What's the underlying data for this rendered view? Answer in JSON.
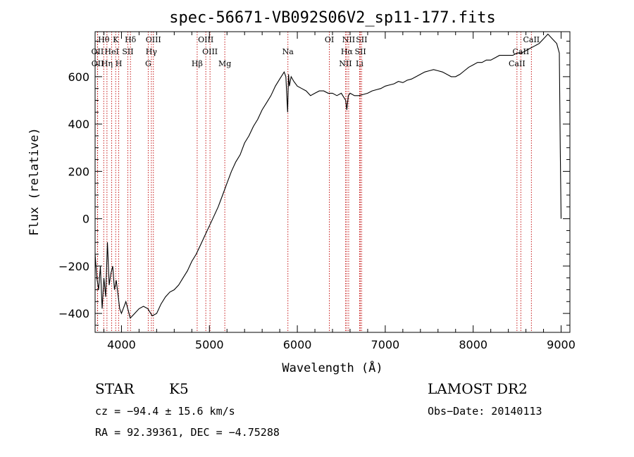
{
  "chart_data": {
    "type": "line",
    "title": "spec-56671-VB092S06V2_sp11-177.fits",
    "xlabel": "Wavelength (Å)",
    "ylabel": "Flux (relative)",
    "xlim": [
      3700,
      9100
    ],
    "ylim": [
      -480,
      790
    ],
    "x_ticks": [
      4000,
      5000,
      6000,
      7000,
      8000,
      9000
    ],
    "y_ticks": [
      -400,
      -200,
      0,
      200,
      400,
      600
    ],
    "grid": false,
    "series": [
      {
        "x": [
          3700,
          3720,
          3740,
          3760,
          3780,
          3800,
          3820,
          3840,
          3860,
          3880,
          3900,
          3920,
          3940,
          3960,
          3980,
          4000,
          4050,
          4100,
          4150,
          4200,
          4250,
          4300,
          4350,
          4400,
          4450,
          4500,
          4550,
          4600,
          4650,
          4700,
          4750,
          4800,
          4850,
          4900,
          4950,
          5000,
          5050,
          5100,
          5150,
          5200,
          5250,
          5300,
          5350,
          5400,
          5450,
          5500,
          5550,
          5600,
          5650,
          5700,
          5750,
          5800,
          5850,
          5870,
          5890,
          5900,
          5910,
          5930,
          5960,
          6000,
          6050,
          6100,
          6150,
          6200,
          6250,
          6300,
          6350,
          6400,
          6450,
          6500,
          6550,
          6563,
          6580,
          6600,
          6650,
          6700,
          6750,
          6800,
          6850,
          6900,
          6950,
          7000,
          7050,
          7100,
          7150,
          7200,
          7250,
          7300,
          7350,
          7400,
          7450,
          7500,
          7550,
          7600,
          7650,
          7700,
          7750,
          7800,
          7850,
          7900,
          7950,
          8000,
          8050,
          8100,
          8150,
          8200,
          8250,
          8300,
          8350,
          8400,
          8450,
          8500,
          8550,
          8600,
          8650,
          8700,
          8750,
          8800,
          8850,
          8900,
          8950,
          8980,
          8990,
          9000
        ],
        "y": [
          -150,
          -250,
          -300,
          -200,
          -380,
          -250,
          -330,
          -100,
          -280,
          -230,
          -200,
          -300,
          -260,
          -320,
          -380,
          -400,
          -350,
          -420,
          -400,
          -380,
          -370,
          -380,
          -410,
          -400,
          -360,
          -330,
          -310,
          -300,
          -280,
          -250,
          -220,
          -180,
          -150,
          -110,
          -70,
          -30,
          10,
          50,
          100,
          150,
          200,
          240,
          270,
          320,
          350,
          390,
          420,
          460,
          490,
          520,
          560,
          590,
          620,
          600,
          450,
          610,
          560,
          600,
          580,
          560,
          550,
          540,
          520,
          530,
          540,
          540,
          530,
          530,
          520,
          530,
          500,
          460,
          520,
          530,
          520,
          520,
          525,
          530,
          540,
          545,
          550,
          560,
          565,
          570,
          580,
          575,
          585,
          590,
          600,
          610,
          620,
          625,
          630,
          625,
          620,
          610,
          600,
          600,
          610,
          625,
          640,
          650,
          660,
          660,
          670,
          670,
          680,
          690,
          690,
          690,
          690,
          700,
          700,
          710,
          720,
          730,
          740,
          760,
          780,
          760,
          740,
          700,
          300,
          0
        ]
      }
    ],
    "line_markers": [
      {
        "label": "Hθ",
        "wavelength": 3798,
        "row": 0
      },
      {
        "label": "K",
        "wavelength": 3934,
        "row": 0
      },
      {
        "label": "Hδ",
        "wavelength": 4102,
        "row": 0
      },
      {
        "label": "OIII",
        "wavelength": 4363,
        "row": 0
      },
      {
        "label": "OIII",
        "wavelength": 4959,
        "row": 0
      },
      {
        "label": "OI",
        "wavelength": 6364,
        "row": 0
      },
      {
        "label": "NII",
        "wavelength": 6584,
        "row": 0
      },
      {
        "label": "SII",
        "wavelength": 6731,
        "row": 0
      },
      {
        "label": "CaII",
        "wavelength": 8662,
        "row": 0
      },
      {
        "label": "OII",
        "wavelength": 3727,
        "row": 1
      },
      {
        "label": "HeI",
        "wavelength": 3889,
        "row": 1
      },
      {
        "label": "SII",
        "wavelength": 4072,
        "row": 1
      },
      {
        "label": "Hγ",
        "wavelength": 4340,
        "row": 1
      },
      {
        "label": "OIII",
        "wavelength": 5007,
        "row": 1
      },
      {
        "label": "Na",
        "wavelength": 5893,
        "row": 1
      },
      {
        "label": "Hα",
        "wavelength": 6563,
        "row": 1
      },
      {
        "label": "SII",
        "wavelength": 6717,
        "row": 1
      },
      {
        "label": "CaII",
        "wavelength": 8542,
        "row": 1
      },
      {
        "label": "OII",
        "wavelength": 3729,
        "row": 2
      },
      {
        "label": "Hη",
        "wavelength": 3835,
        "row": 2
      },
      {
        "label": "H",
        "wavelength": 3969,
        "row": 2
      },
      {
        "label": "G",
        "wavelength": 4304,
        "row": 2
      },
      {
        "label": "Hβ",
        "wavelength": 4861,
        "row": 2
      },
      {
        "label": "Mg",
        "wavelength": 5175,
        "row": 2
      },
      {
        "label": "NII",
        "wavelength": 6548,
        "row": 2
      },
      {
        "label": "Li",
        "wavelength": 6708,
        "row": 2
      },
      {
        "label": "CaII",
        "wavelength": 8498,
        "row": 2
      }
    ]
  },
  "info": {
    "object_type": "STAR",
    "subclass": "K5",
    "survey": "LAMOST DR2",
    "cz": "cz = −94.4 ± 15.6 km/s",
    "obs_date": "Obs−Date: 20140113",
    "coords": "RA =  92.39361, DEC =  −4.75288"
  }
}
